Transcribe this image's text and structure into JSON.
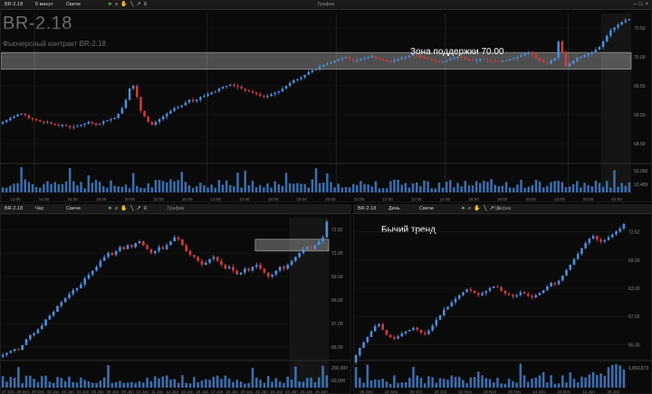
{
  "top_panel": {
    "toolbar": {
      "symbol": "BR-2.18",
      "timeframe": "5 минут",
      "chart_type": "Свечи",
      "title": "График"
    },
    "instrument_title": "BR-2.18",
    "instrument_subtitle": "Фьючерсный контракт BR-2.18",
    "annotation": "Зона поддержки 70.00",
    "price_ticks": [
      "70.50",
      "70.00",
      "69.50",
      "69.00",
      "68.50"
    ],
    "volume_ticks": [
      "50,000",
      "13,469"
    ],
    "time_ticks": [
      "12:00",
      "14:00",
      "16:00",
      "18:00",
      "20:00",
      "22:00",
      "10:00",
      "12:00",
      "14:00",
      "16:00",
      "18:00",
      "20:00",
      "22:00",
      "10:00",
      "12:00",
      "14:00",
      "16:00",
      "18:00",
      "20:00",
      "22:00",
      "00:00",
      "02:00"
    ]
  },
  "bottom_left_panel": {
    "toolbar": {
      "symbol": "BR-2.18",
      "timeframe": "Час",
      "chart_type": "Свечи",
      "title": "График"
    },
    "price_ticks": [
      "72.82",
      "72.00",
      "69.00",
      "66.00",
      "67.00",
      "66.00"
    ],
    "volume_ticks": [
      "200,000",
      "60,000"
    ],
    "time_ticks": [
      "27 Dec",
      "28 Dec",
      "29 Dec",
      "02 Jan",
      "03 Jan",
      "04 Jan",
      "05 Jan",
      "08 Jan",
      "09 Jan",
      "10 Jan",
      "11 Jan",
      "12 Jan",
      "15 Jan",
      "16 Jan",
      "17 Jan",
      "18 Jan",
      "19 Jan",
      "22 Jan",
      "23 Jan",
      "24 Jan",
      "25 Jan",
      "26 Jan"
    ]
  },
  "bottom_right_panel": {
    "toolbar": {
      "symbol": "BR-2.18",
      "timeframe": "День",
      "chart_type": "Свечи",
      "title": "График"
    },
    "annotation": "Бычий тренд",
    "price_ticks": [
      "72.62",
      "69.00",
      "63.00",
      "57.00",
      "55.00"
    ],
    "volume_ticks": [
      "1,860,873"
    ],
    "time_ticks": [
      "08 Sep",
      "22 Sep",
      "06 Oct",
      "20 Oct",
      "02 Nov",
      "16 Nov",
      "30 Nov",
      "14 Dec",
      "28 Dec",
      "11 Jan",
      "25 Jan"
    ]
  },
  "colors": {
    "bull": "#4a90e2",
    "bear": "#d63a3a",
    "zone": "#ffffff",
    "grid": "#1c1c1c",
    "background": "#0a0a0a"
  },
  "chart_data": [
    {
      "type": "candlestick",
      "title": "BR-2.18",
      "timeframe": "5 минут",
      "annotation": "Зона поддержки 70.00",
      "support_zone": [
        69.8,
        70.1
      ],
      "ylim": [
        68.2,
        70.8
      ],
      "close": [
        68.85,
        68.88,
        68.92,
        68.95,
        68.98,
        69.0,
        68.97,
        68.92,
        68.9,
        68.88,
        68.86,
        68.84,
        68.85,
        68.82,
        68.8,
        68.78,
        68.8,
        68.78,
        68.75,
        68.76,
        68.78,
        68.8,
        68.82,
        68.85,
        68.83,
        68.8,
        68.82,
        68.86,
        68.88,
        68.9,
        68.92,
        69.0,
        69.1,
        69.25,
        69.45,
        69.5,
        69.3,
        69.05,
        68.95,
        68.85,
        68.8,
        68.85,
        68.9,
        68.95,
        69.0,
        69.05,
        69.1,
        69.12,
        69.15,
        69.2,
        69.25,
        69.22,
        69.25,
        69.3,
        69.32,
        69.35,
        69.38,
        69.4,
        69.45,
        69.48,
        69.5,
        69.52,
        69.5,
        69.48,
        69.45,
        69.42,
        69.4,
        69.38,
        69.35,
        69.32,
        69.3,
        69.32,
        69.35,
        69.38,
        69.4,
        69.45,
        69.5,
        69.55,
        69.6,
        69.62,
        69.65,
        69.7,
        69.75,
        69.78,
        69.8,
        69.85,
        69.88,
        69.9,
        69.92,
        69.95,
        69.98,
        70.0,
        70.02,
        69.98,
        69.95,
        69.96,
        69.98,
        70.0,
        70.02,
        70.04,
        70.0,
        69.98,
        69.96,
        69.95,
        69.94,
        69.96,
        69.98,
        70.0,
        70.02,
        70.04,
        70.06,
        70.05,
        70.02,
        70.0,
        69.98,
        69.96,
        69.95,
        69.93,
        69.94,
        69.96,
        69.98,
        70.0,
        70.02,
        70.0,
        69.98,
        69.96,
        69.95,
        69.96,
        69.98,
        69.97,
        69.96,
        69.95,
        69.94,
        69.93,
        69.95,
        69.96,
        69.98,
        70.0,
        70.02,
        70.05,
        70.08,
        70.1,
        70.06,
        70.0,
        69.96,
        69.92,
        69.9,
        69.95,
        70.0,
        70.3,
        70.1,
        69.85,
        69.9,
        69.95,
        70.0,
        70.02,
        70.05,
        70.08,
        70.1,
        70.15,
        70.2,
        70.3,
        70.4,
        70.5,
        70.55,
        70.6,
        70.65,
        70.68,
        70.7
      ]
    },
    {
      "type": "candlestick",
      "timeframe": "Час",
      "support_zone": [
        71.3,
        71.9
      ],
      "ylim": [
        65.8,
        73.0
      ],
      "close": [
        66.0,
        66.1,
        66.2,
        66.3,
        66.25,
        66.5,
        66.8,
        67.0,
        67.1,
        67.3,
        67.5,
        67.8,
        68.0,
        68.2,
        68.5,
        68.7,
        68.9,
        69.1,
        69.3,
        69.4,
        69.6,
        69.9,
        70.1,
        70.3,
        70.5,
        70.8,
        71.0,
        71.2,
        71.1,
        71.3,
        71.5,
        71.4,
        71.6,
        71.5,
        71.7,
        71.8,
        71.6,
        71.4,
        71.2,
        71.3,
        71.5,
        71.4,
        71.6,
        71.8,
        72.0,
        71.9,
        71.6,
        71.3,
        71.1,
        71.0,
        70.8,
        70.6,
        70.7,
        70.9,
        71.0,
        70.8,
        70.6,
        70.4,
        70.5,
        70.3,
        70.1,
        70.2,
        70.4,
        70.3,
        70.5,
        70.6,
        70.4,
        70.2,
        70.0,
        70.1,
        70.3,
        70.5,
        70.4,
        70.6,
        70.8,
        71.0,
        71.2,
        71.4,
        71.5,
        71.4,
        71.6,
        71.8,
        72.0,
        72.8
      ]
    },
    {
      "type": "candlestick",
      "timeframe": "День",
      "annotation": "Бычий тренд",
      "ylim": [
        54.0,
        73.5
      ],
      "close": [
        54.5,
        55.5,
        56.3,
        57.0,
        57.8,
        58.5,
        58.8,
        58.0,
        57.3,
        57.0,
        56.8,
        57.1,
        57.5,
        57.8,
        58.0,
        58.3,
        58.0,
        57.6,
        57.4,
        57.9,
        58.6,
        59.4,
        60.0,
        60.8,
        61.2,
        61.8,
        62.3,
        62.8,
        63.2,
        63.6,
        63.4,
        63.1,
        62.8,
        63.1,
        63.4,
        63.8,
        64.0,
        63.9,
        63.4,
        63.0,
        62.8,
        62.6,
        62.8,
        63.2,
        63.0,
        62.7,
        62.5,
        62.8,
        63.1,
        63.5,
        64.0,
        64.5,
        64.3,
        64.8,
        65.5,
        66.3,
        67.0,
        67.8,
        68.5,
        69.3,
        70.0,
        70.6,
        71.0,
        70.5,
        70.2,
        70.4,
        70.8,
        71.2,
        71.6,
        72.0,
        72.62
      ]
    }
  ]
}
